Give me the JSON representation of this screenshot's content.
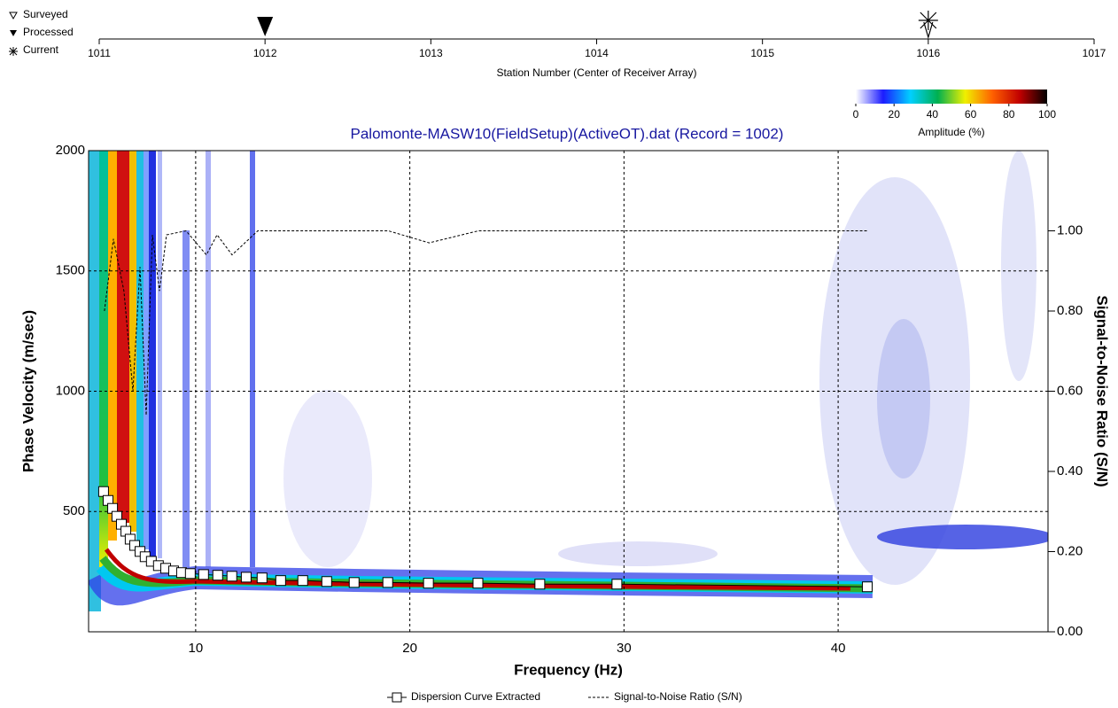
{
  "chart_data": [
    {
      "type": "station-axis",
      "xlabel": "Station Number (Center of Receiver Array)",
      "xlim": [
        1011,
        1017
      ],
      "xticks": [
        1011,
        1012,
        1013,
        1014,
        1015,
        1016,
        1017
      ],
      "series": [
        {
          "name": "Surveyed",
          "x": []
        },
        {
          "name": "Processed",
          "x": [
            1012
          ]
        },
        {
          "name": "Current",
          "x": [
            1016
          ]
        }
      ]
    },
    {
      "type": "colorbar",
      "label": "Amplitude (%)",
      "xlim": [
        0,
        100
      ],
      "xticks": [
        0,
        20,
        40,
        60,
        80,
        100
      ],
      "colors": [
        "#ffffff",
        "#1c1cff",
        "#00d0ff",
        "#00b050",
        "#f0f000",
        "#ff6000",
        "#c00000",
        "#000000"
      ]
    },
    {
      "type": "dispersion",
      "title": "Palomonte-MASW10(FieldSetup)(ActiveOT).dat (Record = 1002)",
      "xlabel": "Frequency (Hz)",
      "ylabel": "Phase Velocity (m/sec)",
      "y2label": "Signal-to-Noise Ratio (S/N)",
      "xlim": [
        5,
        49.8
      ],
      "ylim": [
        0,
        2000
      ],
      "y2lim": [
        0,
        1.2
      ],
      "xticks": [
        10,
        20,
        30,
        40
      ],
      "yticks": [
        500,
        1000,
        1500,
        2000
      ],
      "y2ticks": [
        {
          "value": 0,
          "label": "0.00"
        },
        {
          "value": 0.2,
          "label": "0.20"
        },
        {
          "value": 0.4,
          "label": "0.40"
        },
        {
          "value": 0.6,
          "label": "0.60"
        },
        {
          "value": 0.8,
          "label": "0.80"
        },
        {
          "value": 1.0,
          "label": "1.00"
        }
      ],
      "grid": true,
      "series": [
        {
          "name": "Dispersion Curve Extracted",
          "color": "#ffffff",
          "x": [
            5.7,
            5.91,
            6.12,
            6.32,
            6.53,
            6.74,
            6.94,
            7.15,
            7.4,
            7.64,
            7.93,
            8.26,
            8.6,
            8.97,
            9.34,
            9.75,
            10.37,
            11.03,
            11.69,
            12.36,
            13.1,
            13.97,
            15.0,
            16.12,
            17.4,
            18.97,
            20.87,
            23.18,
            26.07,
            29.67,
            41.36
          ],
          "values": [
            583,
            546,
            513,
            480,
            447,
            418,
            385,
            359,
            334,
            312,
            293,
            275,
            264,
            253,
            246,
            242,
            238,
            235,
            231,
            227,
            224,
            213,
            213,
            209,
            205,
            205,
            202,
            202,
            198,
            198,
            187
          ]
        },
        {
          "name": "Signal-to-Noise Ratio (S/N)",
          "color": "#000000",
          "axis": "y2",
          "x": [
            5.74,
            6.16,
            6.65,
            7.07,
            7.4,
            7.69,
            7.98,
            8.31,
            8.64,
            9.55,
            10.5,
            11.0,
            11.7,
            12.9,
            19.0,
            20.9,
            23.2,
            41.4
          ],
          "values": [
            0.8,
            0.98,
            0.85,
            0.6,
            0.91,
            0.54,
            0.99,
            0.85,
            0.99,
            1.0,
            0.94,
            0.99,
            0.94,
            1.0,
            1.0,
            0.97,
            1.0,
            1.0
          ]
        }
      ]
    }
  ]
}
